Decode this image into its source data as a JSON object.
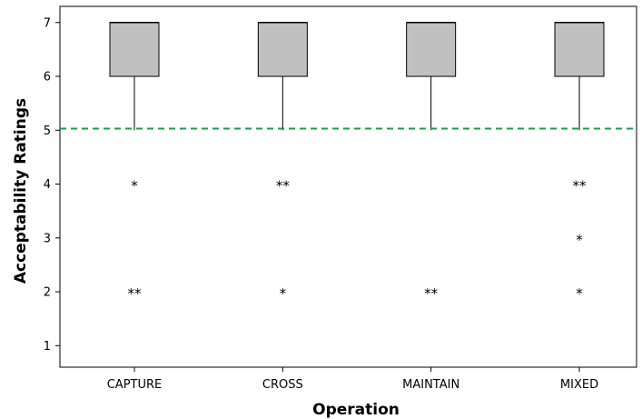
{
  "chart_data": {
    "type": "box",
    "title": "",
    "xlabel": "Operation",
    "ylabel": "Acceptability Ratings",
    "ylim": [
      0.6,
      7.3
    ],
    "yticks": [
      1,
      2,
      3,
      4,
      5,
      6,
      7
    ],
    "categories": [
      "CAPTURE",
      "CROSS",
      "MAINTAIN",
      "MIXED"
    ],
    "boxes": [
      {
        "category": "CAPTURE",
        "q1": 6,
        "median": 7,
        "q3": 7,
        "whisker_low": 5,
        "whisker_high": 7
      },
      {
        "category": "CROSS",
        "q1": 6,
        "median": 7,
        "q3": 7,
        "whisker_low": 5,
        "whisker_high": 7
      },
      {
        "category": "MAINTAIN",
        "q1": 6,
        "median": 7,
        "q3": 7,
        "whisker_low": 5,
        "whisker_high": 7
      },
      {
        "category": "MIXED",
        "q1": 6,
        "median": 7,
        "q3": 7,
        "whisker_low": 5,
        "whisker_high": 7
      }
    ],
    "outliers": [
      {
        "category": "CAPTURE",
        "value": 4,
        "count": 1,
        "label": "*"
      },
      {
        "category": "CAPTURE",
        "value": 2,
        "count": 2,
        "label": "**"
      },
      {
        "category": "CROSS",
        "value": 4,
        "count": 2,
        "label": "**"
      },
      {
        "category": "CROSS",
        "value": 2,
        "count": 1,
        "label": "*"
      },
      {
        "category": "MAINTAIN",
        "value": 2,
        "count": 2,
        "label": "**"
      },
      {
        "category": "MIXED",
        "value": 4,
        "count": 2,
        "label": "**"
      },
      {
        "category": "MIXED",
        "value": 3,
        "count": 1,
        "label": "*"
      },
      {
        "category": "MIXED",
        "value": 2,
        "count": 1,
        "label": "*"
      }
    ],
    "reference_line": {
      "value": 5.03,
      "style": "dashed",
      "color": "#1a9e4a"
    },
    "colors": {
      "box_fill": "#c0c0c0",
      "box_stroke": "#000000",
      "axis": "#000000"
    },
    "grid": false,
    "legend": "none"
  }
}
